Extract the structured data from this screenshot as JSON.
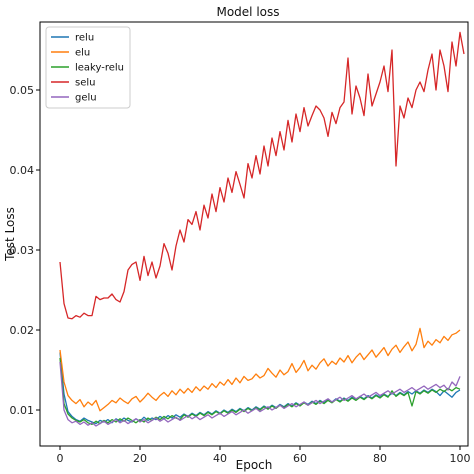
{
  "chart_data": {
    "type": "line",
    "title": "Model loss",
    "xlabel": "Epoch",
    "ylabel": "Test Loss",
    "xlim": [
      -5,
      102
    ],
    "ylim": [
      0.0055,
      0.0585
    ],
    "xticks": [
      0,
      20,
      40,
      60,
      80,
      100
    ],
    "yticks": [
      0.01,
      0.02,
      0.03,
      0.04,
      0.05
    ],
    "ytick_labels": [
      "0.01",
      "0.02",
      "0.03",
      "0.04",
      "0.05"
    ],
    "grid": false,
    "legend_position": "top-left",
    "series": [
      {
        "name": "relu",
        "color": "#1f77b4",
        "values": [
          0.0172,
          0.012,
          0.0098,
          0.0092,
          0.0088,
          0.0086,
          0.009,
          0.0087,
          0.0085,
          0.0083,
          0.0087,
          0.0085,
          0.0088,
          0.0084,
          0.0089,
          0.0086,
          0.009,
          0.0087,
          0.0085,
          0.0089,
          0.0086,
          0.0091,
          0.0087,
          0.009,
          0.0088,
          0.0092,
          0.0089,
          0.0093,
          0.009,
          0.0094,
          0.0091,
          0.0095,
          0.0092,
          0.0096,
          0.0093,
          0.0097,
          0.0094,
          0.0098,
          0.0095,
          0.0099,
          0.0096,
          0.01,
          0.0097,
          0.0101,
          0.0098,
          0.0102,
          0.0099,
          0.0103,
          0.01,
          0.0104,
          0.0101,
          0.0105,
          0.0102,
          0.0106,
          0.0103,
          0.0107,
          0.0104,
          0.0108,
          0.0105,
          0.0109,
          0.0106,
          0.011,
          0.0107,
          0.0111,
          0.0108,
          0.0112,
          0.0109,
          0.0113,
          0.011,
          0.0114,
          0.0111,
          0.0115,
          0.0112,
          0.0116,
          0.0113,
          0.0117,
          0.0114,
          0.0118,
          0.0115,
          0.0119,
          0.0116,
          0.012,
          0.0117,
          0.0121,
          0.0118,
          0.0122,
          0.0119,
          0.0123,
          0.012,
          0.0124,
          0.0121,
          0.0125,
          0.0122,
          0.0126,
          0.0123,
          0.0118,
          0.0124,
          0.012,
          0.0116,
          0.0122,
          0.0125
        ]
      },
      {
        "name": "elu",
        "color": "#ff7f0e",
        "values": [
          0.0175,
          0.0135,
          0.0118,
          0.0112,
          0.0108,
          0.0113,
          0.0104,
          0.011,
          0.0106,
          0.0112,
          0.0099,
          0.0103,
          0.0107,
          0.0112,
          0.0109,
          0.0115,
          0.0111,
          0.0108,
          0.0114,
          0.0117,
          0.011,
          0.0115,
          0.0121,
          0.0116,
          0.0112,
          0.0118,
          0.0122,
          0.0117,
          0.0124,
          0.0119,
          0.0126,
          0.0121,
          0.0127,
          0.0122,
          0.0129,
          0.0124,
          0.013,
          0.0126,
          0.0133,
          0.0128,
          0.0135,
          0.0131,
          0.0138,
          0.0132,
          0.014,
          0.0134,
          0.0142,
          0.0137,
          0.0139,
          0.0145,
          0.014,
          0.0143,
          0.0152,
          0.0146,
          0.0141,
          0.015,
          0.0144,
          0.0148,
          0.0158,
          0.0147,
          0.0153,
          0.0162,
          0.0149,
          0.0156,
          0.0151,
          0.0159,
          0.0164,
          0.0155,
          0.0161,
          0.0157,
          0.0165,
          0.016,
          0.0168,
          0.0159,
          0.0166,
          0.0171,
          0.0163,
          0.0169,
          0.0175,
          0.0166,
          0.0172,
          0.0178,
          0.0168,
          0.0176,
          0.0181,
          0.0172,
          0.0179,
          0.0185,
          0.0174,
          0.0182,
          0.0202,
          0.0178,
          0.0186,
          0.0181,
          0.0188,
          0.0184,
          0.0192,
          0.0187,
          0.0194,
          0.0196,
          0.02
        ]
      },
      {
        "name": "leaky-relu",
        "color": "#2ca02c",
        "values": [
          0.0165,
          0.0108,
          0.0095,
          0.009,
          0.0087,
          0.0085,
          0.0088,
          0.0084,
          0.0082,
          0.0086,
          0.0083,
          0.0087,
          0.0084,
          0.0088,
          0.0085,
          0.0089,
          0.0086,
          0.009,
          0.0087,
          0.0084,
          0.0088,
          0.0085,
          0.009,
          0.0087,
          0.0091,
          0.0088,
          0.0092,
          0.0089,
          0.0093,
          0.009,
          0.0088,
          0.0094,
          0.0091,
          0.0095,
          0.0092,
          0.0096,
          0.0093,
          0.0097,
          0.0094,
          0.0098,
          0.0095,
          0.0099,
          0.0096,
          0.01,
          0.0097,
          0.0101,
          0.0098,
          0.0102,
          0.0099,
          0.0103,
          0.01,
          0.0104,
          0.0101,
          0.0105,
          0.0102,
          0.0106,
          0.0103,
          0.0107,
          0.0104,
          0.0108,
          0.0105,
          0.0109,
          0.0106,
          0.011,
          0.0107,
          0.0111,
          0.0108,
          0.0112,
          0.0109,
          0.0113,
          0.011,
          0.0114,
          0.0111,
          0.0115,
          0.0112,
          0.0116,
          0.0113,
          0.0117,
          0.0114,
          0.0118,
          0.0115,
          0.0119,
          0.0116,
          0.0124,
          0.0117,
          0.0121,
          0.0118,
          0.0122,
          0.0105,
          0.0123,
          0.012,
          0.0124,
          0.0121,
          0.0125,
          0.0122,
          0.0126,
          0.0123,
          0.0127,
          0.0124,
          0.0128,
          0.0126
        ]
      },
      {
        "name": "selu",
        "color": "#d62728",
        "values": [
          0.0285,
          0.0233,
          0.0215,
          0.0214,
          0.0218,
          0.0216,
          0.0221,
          0.0218,
          0.0218,
          0.0242,
          0.0238,
          0.024,
          0.024,
          0.0245,
          0.0238,
          0.0235,
          0.0248,
          0.0275,
          0.0282,
          0.0285,
          0.0262,
          0.0292,
          0.0268,
          0.0285,
          0.0265,
          0.028,
          0.0308,
          0.0296,
          0.0275,
          0.0305,
          0.0325,
          0.031,
          0.0338,
          0.0332,
          0.0348,
          0.0325,
          0.0356,
          0.034,
          0.037,
          0.0348,
          0.0378,
          0.036,
          0.039,
          0.0372,
          0.0398,
          0.0382,
          0.0365,
          0.0408,
          0.039,
          0.0418,
          0.0395,
          0.043,
          0.0405,
          0.044,
          0.0418,
          0.0448,
          0.0425,
          0.0462,
          0.0435,
          0.047,
          0.0448,
          0.0478,
          0.0455,
          0.0468,
          0.048,
          0.0475,
          0.0465,
          0.0442,
          0.0472,
          0.0458,
          0.0478,
          0.0485,
          0.054,
          0.047,
          0.0505,
          0.049,
          0.0468,
          0.052,
          0.048,
          0.0495,
          0.051,
          0.053,
          0.0498,
          0.055,
          0.0405,
          0.048,
          0.0465,
          0.049,
          0.0478,
          0.05,
          0.051,
          0.0498,
          0.0525,
          0.0545,
          0.05,
          0.055,
          0.053,
          0.0498,
          0.056,
          0.053,
          0.0572,
          0.0545
        ]
      },
      {
        "name": "gelu",
        "color": "#9467bd",
        "values": [
          0.016,
          0.01,
          0.0088,
          0.0084,
          0.0086,
          0.0082,
          0.0085,
          0.0081,
          0.0084,
          0.008,
          0.0083,
          0.0086,
          0.0082,
          0.0085,
          0.0088,
          0.0084,
          0.0087,
          0.0083,
          0.0086,
          0.0089,
          0.0085,
          0.0088,
          0.0084,
          0.0087,
          0.009,
          0.0086,
          0.0089,
          0.0085,
          0.0088,
          0.0091,
          0.0087,
          0.009,
          0.0093,
          0.0089,
          0.0092,
          0.0088,
          0.0091,
          0.0094,
          0.009,
          0.0093,
          0.0096,
          0.0092,
          0.0095,
          0.0098,
          0.0094,
          0.0097,
          0.01,
          0.0096,
          0.0099,
          0.0102,
          0.0098,
          0.0101,
          0.0104,
          0.01,
          0.0103,
          0.0106,
          0.0102,
          0.0105,
          0.0108,
          0.0104,
          0.0107,
          0.011,
          0.0106,
          0.0109,
          0.0112,
          0.0108,
          0.0111,
          0.0114,
          0.011,
          0.0113,
          0.0116,
          0.0112,
          0.0115,
          0.0118,
          0.0114,
          0.0117,
          0.012,
          0.0116,
          0.0119,
          0.0122,
          0.0118,
          0.0121,
          0.0124,
          0.012,
          0.0123,
          0.0126,
          0.0122,
          0.0125,
          0.0128,
          0.0124,
          0.0127,
          0.013,
          0.0126,
          0.0129,
          0.0132,
          0.0128,
          0.0131,
          0.0125,
          0.0135,
          0.013,
          0.0142
        ]
      }
    ]
  }
}
